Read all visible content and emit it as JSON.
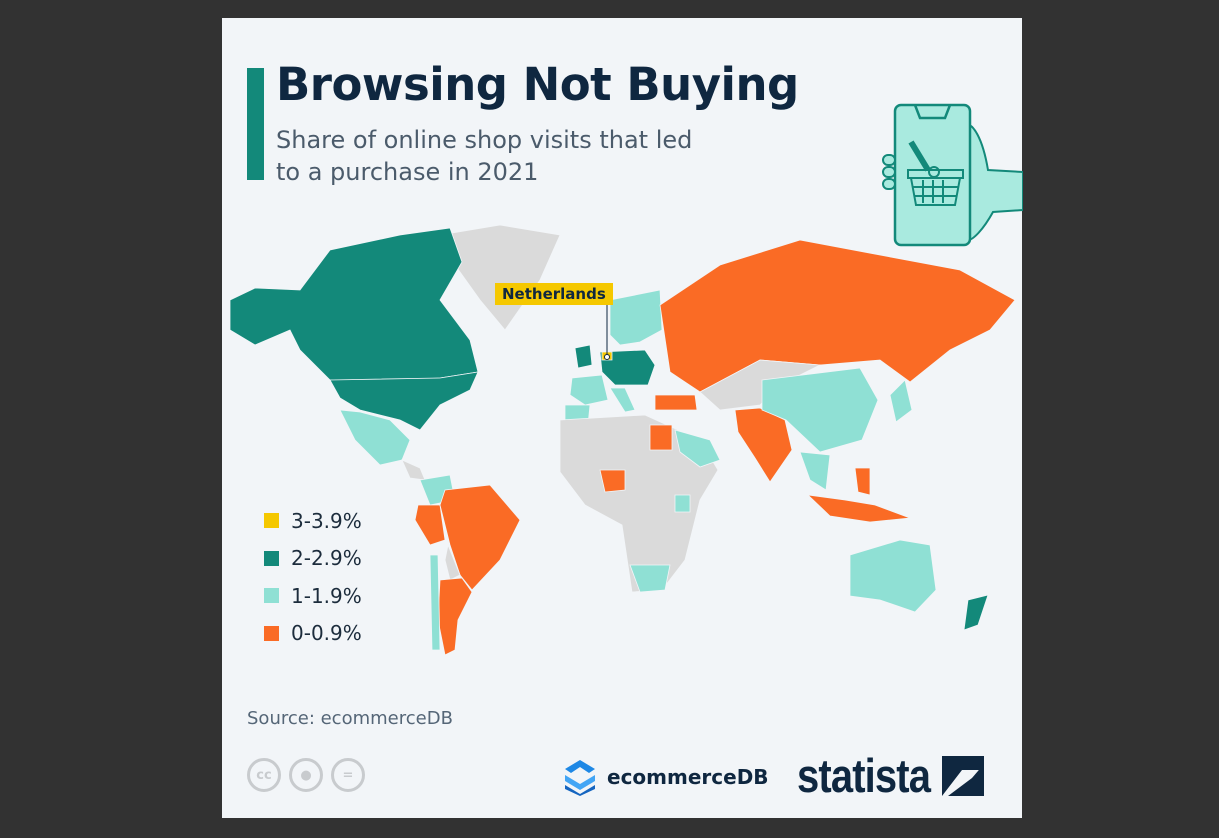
{
  "title": "Browsing Not Buying",
  "subtitle": "Share of online shop visits that led to a purchase in 2021",
  "annotation": "Netherlands",
  "legend": [
    {
      "id": "c3",
      "label": "3-3.9%",
      "color": "#f5c800"
    },
    {
      "id": "c2",
      "label": "2-2.9%",
      "color": "#13897a"
    },
    {
      "id": "c1",
      "label": "1-1.9%",
      "color": "#8fe0d4"
    },
    {
      "id": "c0",
      "label": "0-0.9%",
      "color": "#fa6b25"
    }
  ],
  "no_data_color": "#dadada",
  "map_categories": {
    "Canada": "c2",
    "United States": "c2",
    "Mexico": "c1",
    "Colombia": "c1",
    "Brazil": "c0",
    "Peru": "c0",
    "Argentina": "c0",
    "Chile": "c1",
    "Netherlands": "c3",
    "Germany": "c2",
    "United Kingdom": "c2",
    "Poland": "c2",
    "Austria": "c2",
    "Nordics": "c1",
    "France": "c1",
    "Spain": "c1",
    "Italy": "c1",
    "Russia": "c0",
    "Turkey": "c0",
    "Egypt": "c0",
    "Nigeria": "c0",
    "Saudi Arabia": "c1",
    "Kenya": "c1",
    "South Africa": "c1",
    "India": "c0",
    "China": "c1",
    "Japan": "c1",
    "Southeast Asia": "c1",
    "Indonesia": "c0",
    "Philippines": "c0",
    "Australia": "c1",
    "New Zealand": "c2"
  },
  "source": "Source: ecommerceDB",
  "license_icons": [
    "cc-icon",
    "attribution-icon",
    "no-derivatives-icon"
  ],
  "logos": {
    "ecommercedb": "ecommerceDB",
    "statista": "statista"
  }
}
